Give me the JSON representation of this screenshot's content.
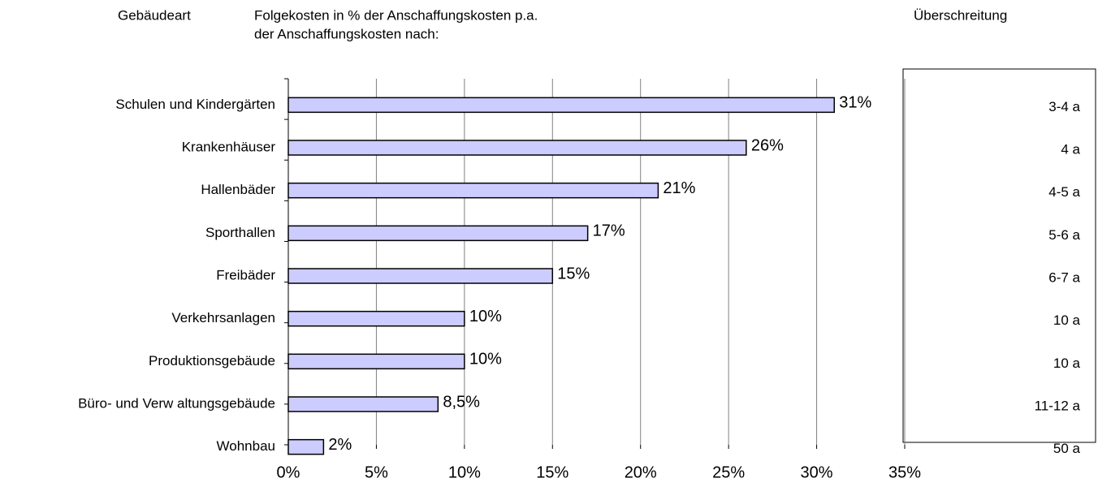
{
  "chart_data": {
    "type": "bar",
    "orientation": "horizontal",
    "headers": [
      "Gebäudeart",
      "Folgekosten in % der Anschaffungskosten p.a.",
      "der Anschaffungskosten nach:",
      "Überschreitung"
    ],
    "categories": [
      "Schulen und Kindergärten",
      "Krankenhäuser",
      "Hallenbäder",
      "Sporthallen",
      "Freibäder",
      "Verkehrsanlagen",
      "Produktionsgebäude",
      "Büro- und Verw altungsgebäude",
      "Wohnbau"
    ],
    "values": [
      31,
      26,
      21,
      17,
      15,
      10,
      10,
      8.5,
      2
    ],
    "value_labels": [
      "31%",
      "26%",
      "21%",
      "17%",
      "15%",
      "10%",
      "10%",
      "8,5%",
      "2%"
    ],
    "exceedance": [
      "3-4 a",
      "4 a",
      "4-5 a",
      "5-6 a",
      "6-7 a",
      "10 a",
      "10 a",
      "11-12 a",
      "50 a"
    ],
    "color": "#ccccff",
    "xlim": [
      0,
      35
    ],
    "xticks": [
      {
        "value": 0,
        "label": "0%"
      },
      {
        "value": 5,
        "label": "5%"
      },
      {
        "value": 10,
        "label": "10%"
      },
      {
        "value": 15,
        "label": "15%"
      },
      {
        "value": 20,
        "label": "20%"
      },
      {
        "value": 25,
        "label": "25%"
      },
      {
        "value": 30,
        "label": "30%"
      },
      {
        "value": 35,
        "label": "35%"
      }
    ],
    "grid": true
  }
}
